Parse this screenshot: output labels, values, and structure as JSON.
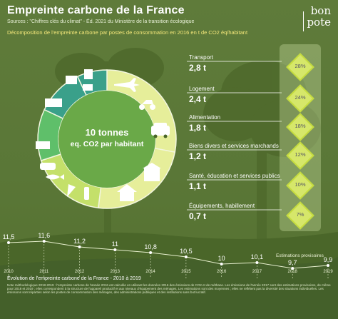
{
  "header": {
    "title": "Empreinte carbone de la France",
    "sources": "Sources : \"Chiffres clés du climat\" - Éd. 2021 du Ministère de la transition écologique",
    "subtitle": "Décomposition de l'empreinte carbone par postes de consommation en 2016 en t de CO2 éq/habitant",
    "brand_line1": "bon",
    "brand_line2": "pote"
  },
  "center": {
    "line1": "10 tonnes",
    "line2": "eq. CO2 par habitant"
  },
  "colors": {
    "background": "#5e7a3a",
    "ring_light": "#e6ee9a",
    "ring_mid": "#c4e06a",
    "ring_green": "#5fbf6a",
    "ring_teal": "#3aa08a",
    "center": "#6aa948",
    "diamond": "#d6e76a"
  },
  "chart_data": [
    {
      "type": "pie",
      "title": "Décomposition de l'empreinte carbone par postes de consommation en 2016 en t de CO2 éq/habitant",
      "total_label": "10 tonnes eq. CO2 par habitant",
      "categories": [
        "Transport",
        "Logement",
        "Alimentation",
        "Biens divers et services marchands",
        "Santé, éducation et services publics",
        "Équipements, habillement"
      ],
      "values": [
        2.8,
        2.4,
        1.8,
        1.2,
        1.1,
        0.7
      ],
      "value_labels": [
        "2,8 t",
        "2,4 t",
        "1,8 t",
        "1,2 t",
        "1,1 t",
        "0,7 t"
      ],
      "percent_labels": [
        "28%",
        "24%",
        "18%",
        "12%",
        "10%",
        "7%"
      ]
    },
    {
      "type": "line",
      "title": "Évolution de l'empreinte carbone de la France - 2010 à 2019",
      "x": [
        "2010",
        "2011",
        "2012",
        "2013",
        "2014",
        "2015",
        "2016",
        "2017",
        "2018",
        "2019"
      ],
      "values": [
        11.5,
        11.6,
        11.2,
        11,
        10.8,
        10.5,
        10,
        10.1,
        9.7,
        9.9
      ],
      "value_labels": [
        "11,5",
        "11,6",
        "11,2",
        "11",
        "10,8",
        "10,5",
        "10",
        "10,1",
        "9,7",
        "9,9"
      ],
      "annotation": "Estimations provisoires"
    }
  ],
  "footnote": "Note méthodologique 2018-2019 : l'empreinte carbone de l'année 2016 est calculée en utilisant les données 2016 des émissions de CO2 et de méthane. Les émissions de l'année 2017 sont des estimations provisoires, de même pour 2018 et 2019 ; elles correspondent à la structure de l'appareil productif et aux niveaux d'équipement des ménages. Les estimations sont des moyennes ; elles ne reflètent pas la diversité des situations individuelles. Les émissions sont réparties selon les postes de consommation des ménages, des administrations publiques et des institutions sans but lucratif."
}
